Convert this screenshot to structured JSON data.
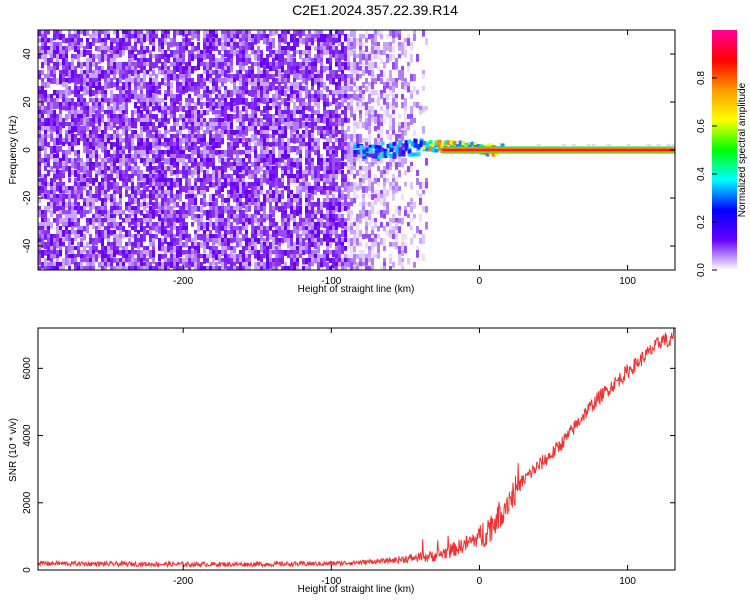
{
  "title": "C2E1.2024.357.22.39.R14",
  "chart_data": [
    {
      "type": "heatmap",
      "xlabel": "Height of straight line (km)",
      "ylabel": "Frequency (Hz)",
      "xlim": [
        -298,
        132
      ],
      "ylim": [
        -50,
        50
      ],
      "x_ticks": [
        -200,
        -100,
        0,
        100
      ],
      "y_ticks": [
        -40,
        -20,
        0,
        20,
        40
      ],
      "colorbar": {
        "label": "Normalized spectral amplitude",
        "range": [
          0,
          1
        ],
        "ticks": [
          0.0,
          0.2,
          0.4,
          0.6,
          0.8
        ],
        "colors": [
          "#ffffff",
          "#6600ff",
          "#0000ff",
          "#00ffff",
          "#00ff00",
          "#ffff00",
          "#ff9900",
          "#ff0000",
          "#ff0099"
        ]
      },
      "description_values": {
        "noise_region_km": [
          -298,
          -35
        ],
        "signal_line_frequency_hz": 0,
        "signal_start_km": -85
      }
    },
    {
      "type": "line",
      "xlabel": "Height of straight line (km)",
      "ylabel": "SNR (10 * v/v)",
      "xlim": [
        -298,
        132
      ],
      "ylim": [
        0,
        7200
      ],
      "x_ticks": [
        -200,
        -100,
        0,
        100
      ],
      "y_ticks": [
        0,
        2000,
        4000,
        6000
      ],
      "series": [
        {
          "color": "#ee3333",
          "points": [
            [
              -298,
              200
            ],
            [
              -250,
              180
            ],
            [
              -200,
              170
            ],
            [
              -150,
              170
            ],
            [
              -100,
              190
            ],
            [
              -80,
              230
            ],
            [
              -60,
              280
            ],
            [
              -40,
              380
            ],
            [
              -30,
              420
            ],
            [
              -20,
              560
            ],
            [
              -10,
              760
            ],
            [
              0,
              980
            ],
            [
              10,
              1400
            ],
            [
              20,
              2100
            ],
            [
              30,
              2700
            ],
            [
              40,
              3100
            ],
            [
              50,
              3500
            ],
            [
              60,
              4000
            ],
            [
              70,
              4600
            ],
            [
              80,
              5100
            ],
            [
              90,
              5500
            ],
            [
              100,
              5900
            ],
            [
              110,
              6300
            ],
            [
              120,
              6700
            ],
            [
              125,
              6900
            ],
            [
              128,
              6700
            ],
            [
              132,
              7100
            ]
          ]
        }
      ]
    }
  ]
}
